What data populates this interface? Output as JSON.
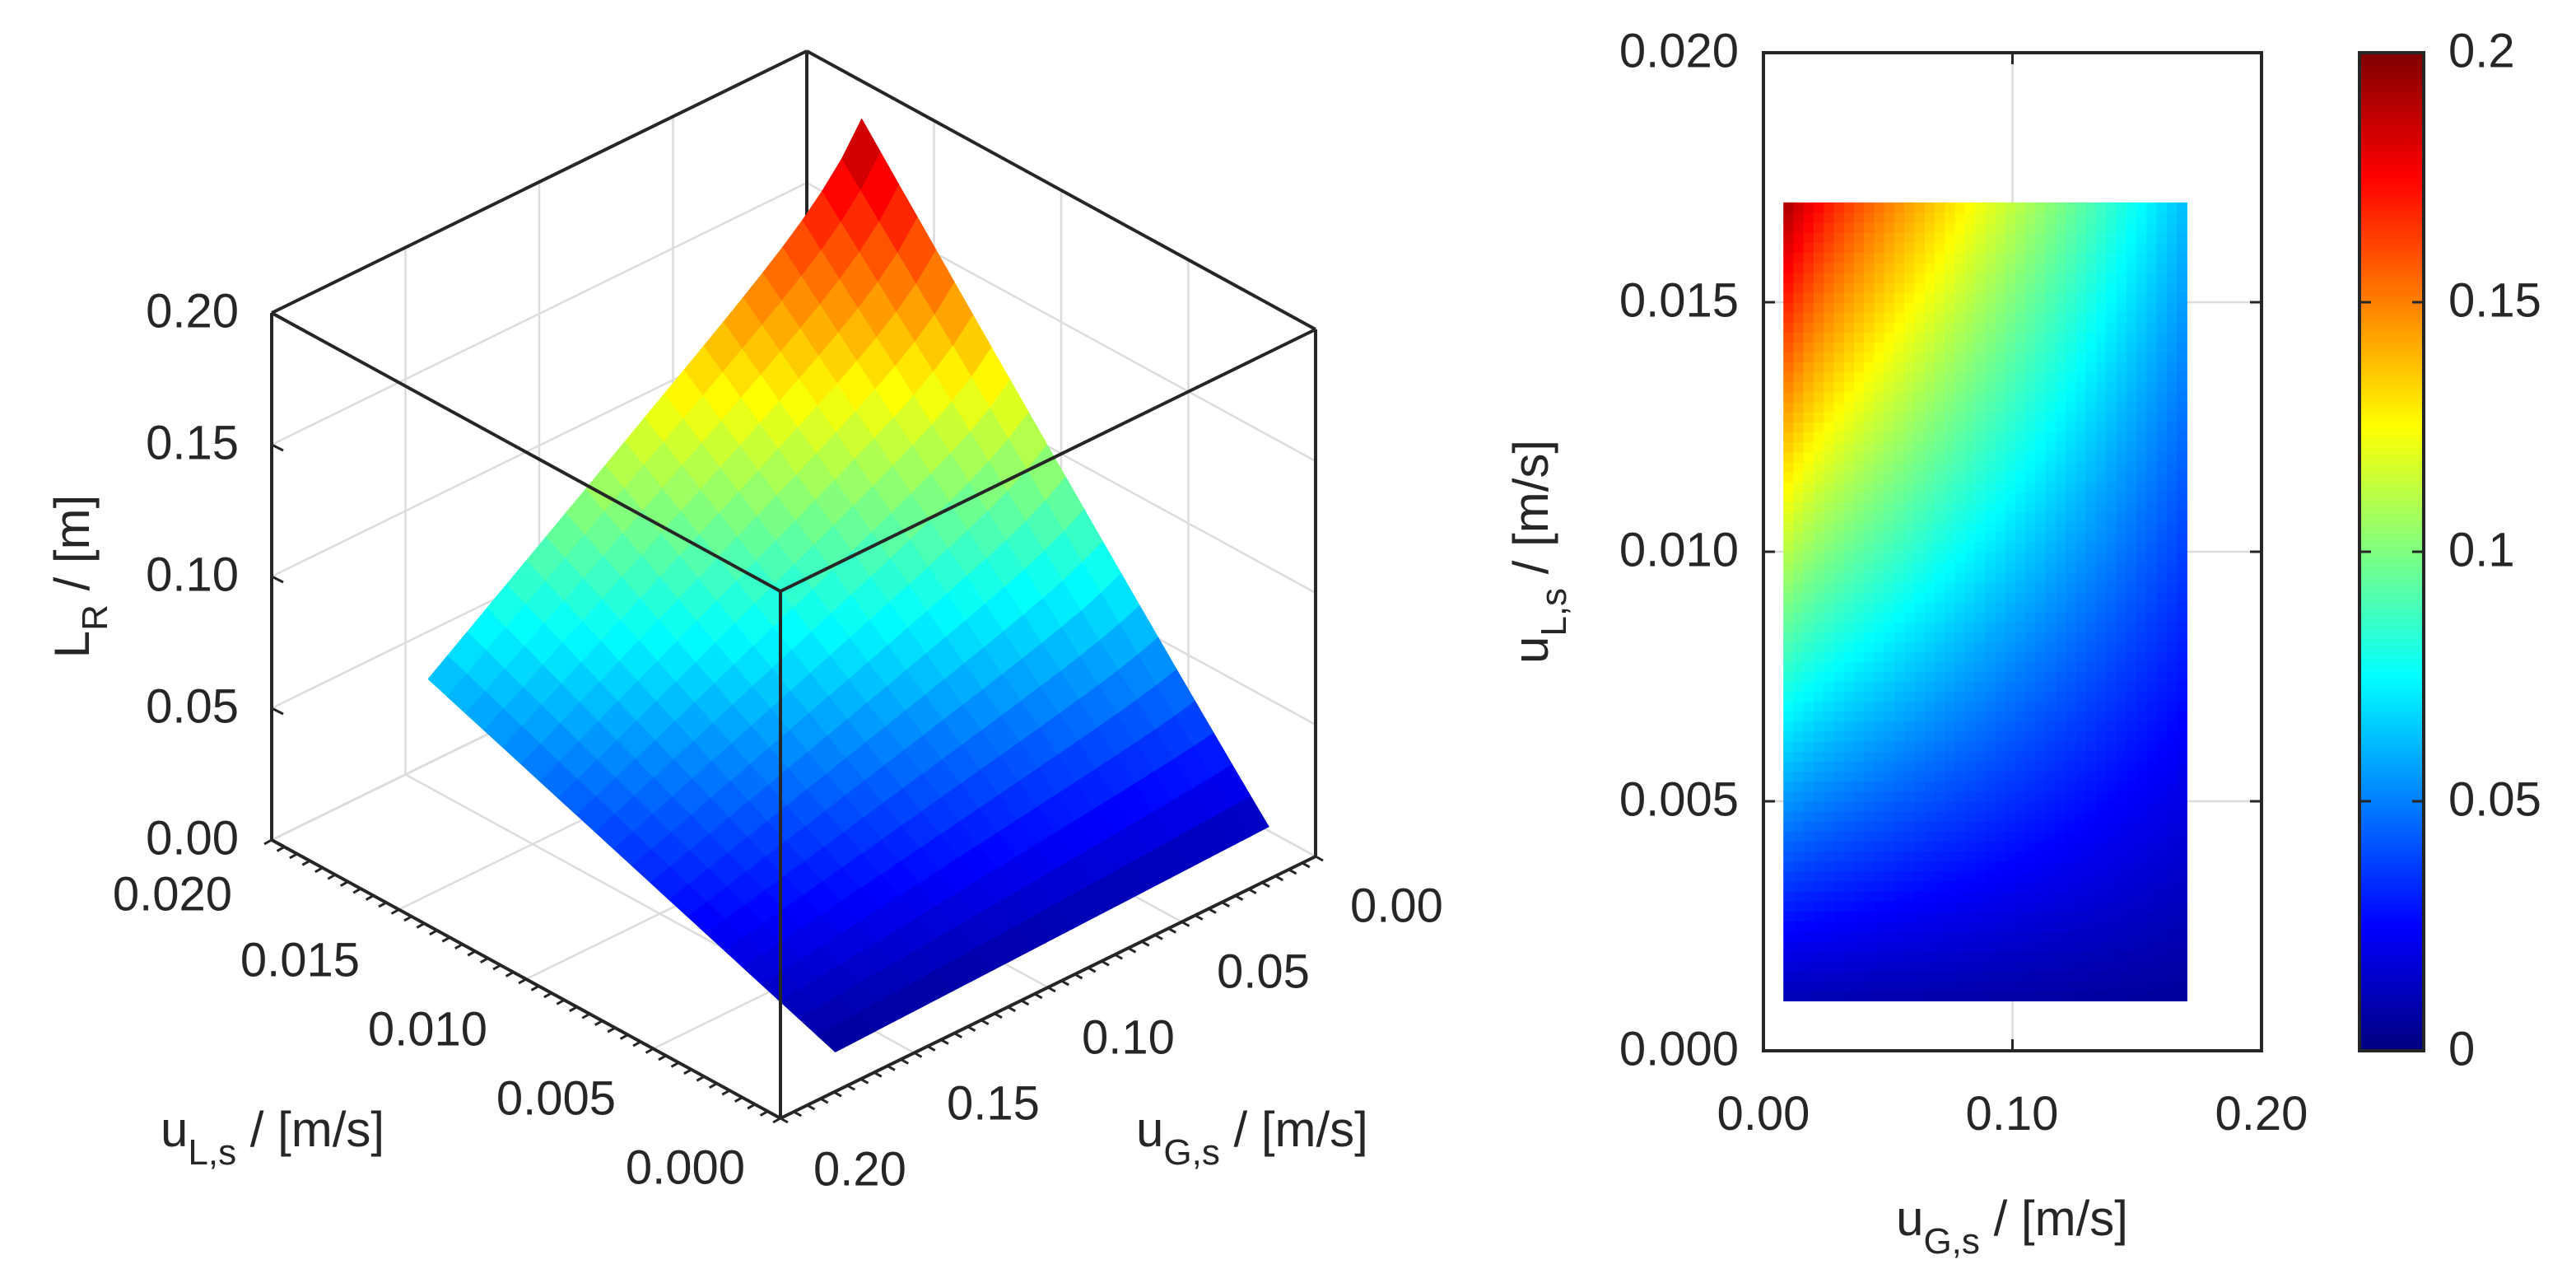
{
  "chart_data": [
    {
      "type": "surface",
      "title": "",
      "x_label": {
        "main": "u",
        "sub": "G,s",
        "unit": " / [m/s]"
      },
      "y_label": {
        "main": "u",
        "sub": "L,s",
        "unit": " / [m/s]"
      },
      "z_label": {
        "main": "L",
        "sub": "R",
        "unit": " / [m]"
      },
      "x_ticks": [
        "0.00",
        "0.05",
        "0.10",
        "0.15",
        "0.20"
      ],
      "y_ticks": [
        "0.000",
        "0.005",
        "0.010",
        "0.015",
        "0.020"
      ],
      "z_ticks": [
        "0.00",
        "0.05",
        "0.10",
        "0.15",
        "0.20"
      ],
      "x_range": [
        0,
        0.2
      ],
      "y_range": [
        0,
        0.02
      ],
      "z_range": [
        0,
        0.2
      ],
      "grid": true,
      "surface_extent": {
        "x": [
          0.008,
          0.17
        ],
        "y": [
          0.001,
          0.017
        ]
      },
      "surface_corner_values": {
        "low_uG_high_uL": 0.18,
        "high_uG_high_uL": 0.062,
        "low_uG_low_uL": 0.01,
        "high_uG_low_uL": 0.005
      }
    },
    {
      "type": "heatmap",
      "title": "",
      "x_label": {
        "main": "u",
        "sub": "G,s",
        "unit": " / [m/s]"
      },
      "y_label": {
        "main": "u",
        "sub": "L,s",
        "unit": " / [m/s]"
      },
      "x_ticks": [
        "0.00",
        "0.10",
        "0.20"
      ],
      "y_ticks": [
        "0.000",
        "0.005",
        "0.010",
        "0.015",
        "0.020"
      ],
      "x_range": [
        0,
        0.2
      ],
      "y_range": [
        0,
        0.02
      ],
      "grid": true,
      "data_extent": {
        "x": [
          0.008,
          0.17
        ],
        "y": [
          0.001,
          0.017
        ]
      },
      "colorbar": {
        "ticks": [
          "0",
          "0.05",
          "0.1",
          "0.15",
          "0.2"
        ],
        "range": [
          0,
          0.2
        ],
        "colormap": "jet"
      }
    }
  ],
  "colors": {
    "axis": "#262626",
    "grid": "#dcdcdc"
  }
}
